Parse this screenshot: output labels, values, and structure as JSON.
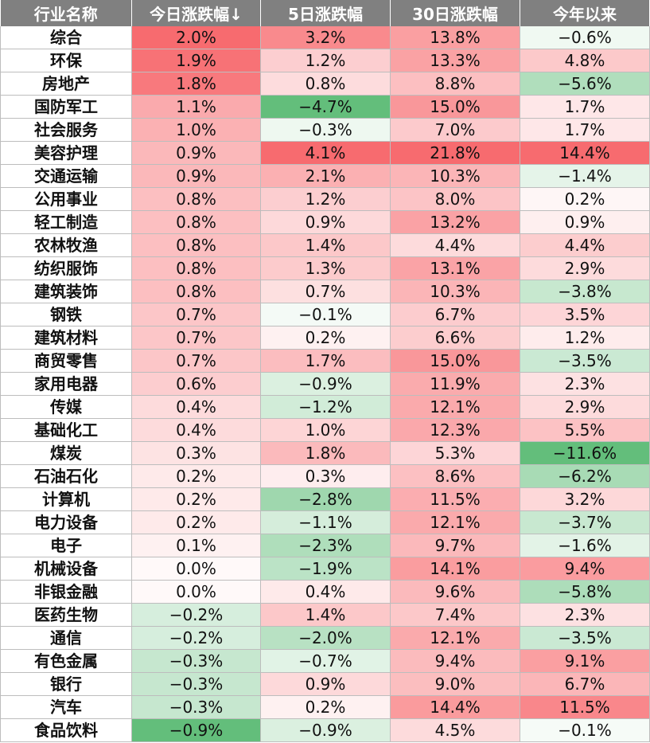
{
  "chart_data": {
    "type": "table",
    "columns": [
      "行业名称",
      "今日涨跌幅↓",
      "5日涨跌幅",
      "30日涨跌幅",
      "今年以来"
    ],
    "rows": [
      {
        "name": "综合",
        "values": [
          "2.0%",
          "3.2%",
          "13.8%",
          "−0.6%"
        ]
      },
      {
        "name": "环保",
        "values": [
          "1.9%",
          "1.2%",
          "13.3%",
          "4.8%"
        ]
      },
      {
        "name": "房地产",
        "values": [
          "1.8%",
          "0.8%",
          "8.8%",
          "−5.6%"
        ]
      },
      {
        "name": "国防军工",
        "values": [
          "1.1%",
          "−4.7%",
          "15.0%",
          "1.7%"
        ]
      },
      {
        "name": "社会服务",
        "values": [
          "1.0%",
          "−0.3%",
          "7.0%",
          "1.7%"
        ]
      },
      {
        "name": "美容护理",
        "values": [
          "0.9%",
          "4.1%",
          "21.8%",
          "14.4%"
        ]
      },
      {
        "name": "交通运输",
        "values": [
          "0.9%",
          "2.1%",
          "10.3%",
          "−1.4%"
        ]
      },
      {
        "name": "公用事业",
        "values": [
          "0.8%",
          "1.2%",
          "8.0%",
          "0.2%"
        ]
      },
      {
        "name": "轻工制造",
        "values": [
          "0.8%",
          "0.9%",
          "13.2%",
          "0.9%"
        ]
      },
      {
        "name": "农林牧渔",
        "values": [
          "0.8%",
          "1.4%",
          "4.4%",
          "4.4%"
        ]
      },
      {
        "name": "纺织服饰",
        "values": [
          "0.8%",
          "1.3%",
          "13.1%",
          "2.9%"
        ]
      },
      {
        "name": "建筑装饰",
        "values": [
          "0.8%",
          "0.7%",
          "10.3%",
          "−3.8%"
        ]
      },
      {
        "name": "钢铁",
        "values": [
          "0.7%",
          "−0.1%",
          "6.7%",
          "3.5%"
        ]
      },
      {
        "name": "建筑材料",
        "values": [
          "0.7%",
          "0.2%",
          "6.6%",
          "1.2%"
        ]
      },
      {
        "name": "商贸零售",
        "values": [
          "0.7%",
          "1.7%",
          "15.0%",
          "−3.5%"
        ]
      },
      {
        "name": "家用电器",
        "values": [
          "0.6%",
          "−0.9%",
          "11.9%",
          "2.3%"
        ]
      },
      {
        "name": "传媒",
        "values": [
          "0.4%",
          "−1.2%",
          "12.1%",
          "2.9%"
        ]
      },
      {
        "name": "基础化工",
        "values": [
          "0.4%",
          "1.0%",
          "12.3%",
          "5.5%"
        ]
      },
      {
        "name": "煤炭",
        "values": [
          "0.3%",
          "1.8%",
          "5.3%",
          "−11.6%"
        ]
      },
      {
        "name": "石油石化",
        "values": [
          "0.2%",
          "0.3%",
          "8.6%",
          "−6.2%"
        ]
      },
      {
        "name": "计算机",
        "values": [
          "0.2%",
          "−2.8%",
          "11.5%",
          "3.2%"
        ]
      },
      {
        "name": "电力设备",
        "values": [
          "0.2%",
          "−1.1%",
          "12.1%",
          "−3.7%"
        ]
      },
      {
        "name": "电子",
        "values": [
          "0.1%",
          "−2.3%",
          "9.7%",
          "−1.6%"
        ]
      },
      {
        "name": "机械设备",
        "values": [
          "0.0%",
          "−1.9%",
          "14.1%",
          "9.4%"
        ]
      },
      {
        "name": "非银金融",
        "values": [
          "0.0%",
          "0.4%",
          "9.6%",
          "−5.8%"
        ]
      },
      {
        "name": "医药生物",
        "values": [
          "−0.2%",
          "1.4%",
          "7.4%",
          "2.3%"
        ]
      },
      {
        "name": "通信",
        "values": [
          "−0.2%",
          "−2.0%",
          "12.1%",
          "−3.5%"
        ]
      },
      {
        "name": "有色金属",
        "values": [
          "−0.3%",
          "−0.7%",
          "9.4%",
          "9.1%"
        ]
      },
      {
        "name": "银行",
        "values": [
          "−0.3%",
          "0.9%",
          "9.0%",
          "6.7%"
        ]
      },
      {
        "name": "汽车",
        "values": [
          "−0.3%",
          "0.2%",
          "14.4%",
          "11.5%"
        ]
      },
      {
        "name": "食品饮料",
        "values": [
          "−0.9%",
          "−0.9%",
          "4.5%",
          "−0.1%"
        ]
      }
    ],
    "colors": {
      "header_bg": "#808080",
      "header_text": "#ffffff",
      "positive_max": "#f76b6f",
      "negative_max": "#63be7b",
      "neutral": "#ffffff"
    }
  }
}
